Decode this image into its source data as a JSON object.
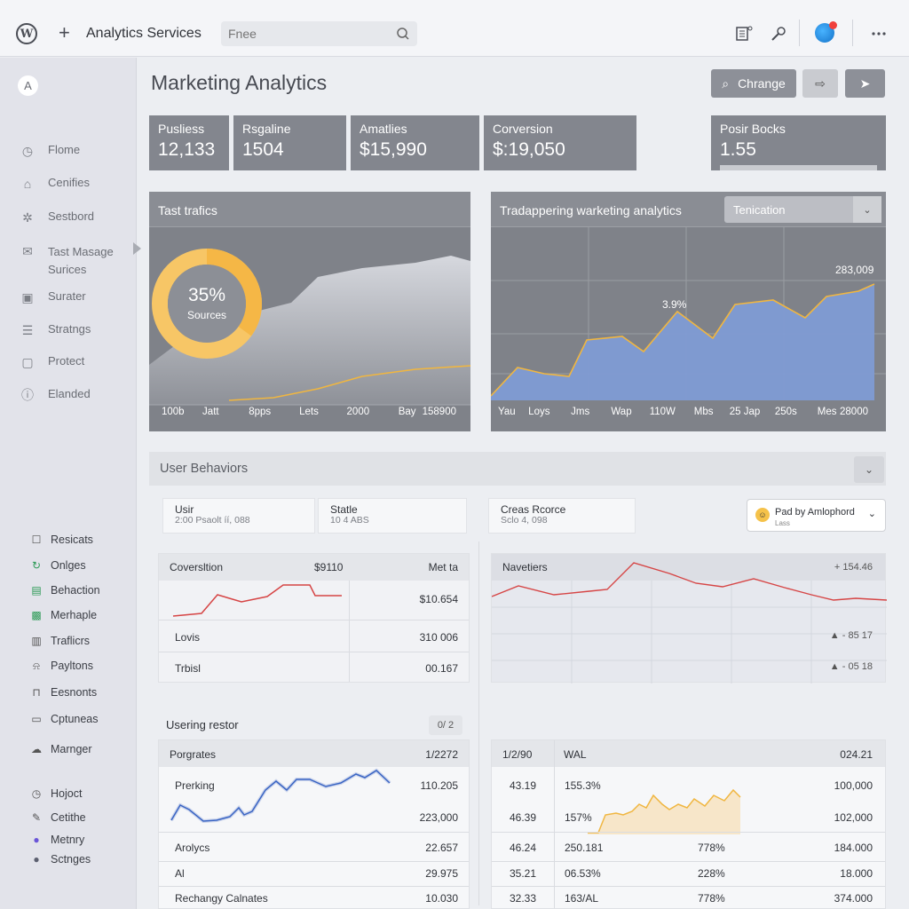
{
  "topbar": {
    "app_title": "Analytics Services",
    "search_placeholder": "Fnee",
    "icons": [
      "wordpress-icon",
      "plus-icon",
      "search-icon",
      "list-icon",
      "tool-icon",
      "avatar",
      "more-icon"
    ]
  },
  "sidebar": {
    "logo": "A",
    "items": [
      {
        "label": "Flome",
        "icon": "clock-icon"
      },
      {
        "label": "Cenifies",
        "icon": "home-icon"
      },
      {
        "label": "Sestbord",
        "icon": "gear-icon"
      },
      {
        "label": "Tast Masage Surices",
        "icon": "message-icon"
      },
      {
        "label": "Surater",
        "icon": "grid-icon"
      },
      {
        "label": "Stratngs",
        "icon": "list-icon"
      },
      {
        "label": "Protect",
        "icon": "shield-icon"
      },
      {
        "label": "Elanded",
        "icon": "info-icon"
      }
    ],
    "items2": [
      {
        "label": "Resicats",
        "icon": "square-icon"
      },
      {
        "label": "Onlges",
        "icon": "refresh-icon"
      },
      {
        "label": "Behaction",
        "icon": "chart-icon"
      },
      {
        "label": "Merhaple",
        "icon": "image-icon"
      },
      {
        "label": "Traflicrs",
        "icon": "doc-icon"
      },
      {
        "label": "Payltons",
        "icon": "bell-icon"
      },
      {
        "label": "Eesnonts",
        "icon": "lock-icon"
      },
      {
        "label": "Cptuneas",
        "icon": "folder-icon"
      },
      {
        "label": "Marnger",
        "icon": "cloud-icon"
      },
      {
        "label": "Hojoct",
        "icon": "clock-icon"
      },
      {
        "label": "Cetithe",
        "icon": "edit-icon"
      },
      {
        "label": "Metnry",
        "icon": "question-icon"
      },
      {
        "label": "Sctnges",
        "icon": "settings-icon"
      }
    ]
  },
  "header": {
    "page_title": "Marketing Analytics",
    "buttons": {
      "change": "Chrange"
    }
  },
  "kpis": [
    {
      "label": "Pusliess",
      "value": "12,133"
    },
    {
      "label": "Rsgaline",
      "value": "1504"
    },
    {
      "label": "Amatlies",
      "value": "$15,990"
    },
    {
      "label": "Corversion",
      "value": "$:19,050"
    },
    {
      "label": "Posir Bocks",
      "value": "1.55"
    }
  ],
  "panels": {
    "traffic": {
      "title": "Tast trafics",
      "donut_value": "35%",
      "donut_label": "Sources",
      "donut_fraction": 0.35,
      "colors": {
        "donut": "#f5b746",
        "line": "#f0b640",
        "area": "#c3c5cc"
      }
    },
    "marketing": {
      "title": "Tradappering warketing analytics",
      "select_value": "Tenication",
      "annotations": [
        "3.9%",
        "283,009"
      ],
      "colors": {
        "area": "#7f9bd4",
        "line": "#f0b640"
      }
    }
  },
  "chart_data": [
    {
      "type": "area",
      "title": "Tast trafics",
      "categories": [
        "100b",
        "Jatt",
        "8pps",
        "Lets",
        "2000",
        "Bay",
        "158900"
      ]
    },
    {
      "type": "area",
      "title": "Tradappering warketing analytics",
      "categories": [
        "Yau",
        "Loys",
        "Jms",
        "Wap",
        "110W",
        "Mbs",
        "25 Jap",
        "250s",
        "Mes",
        "28000"
      ]
    }
  ],
  "user_behaviors": {
    "title": "User Behaviors",
    "cards": [
      {
        "title": "Usir",
        "sub": "2:00 Psaolt íí, 088"
      },
      {
        "title": "Statle",
        "sub": "10 4 ABS"
      },
      {
        "title": "Creas Rcorce",
        "sub": "Sclo 4, 098"
      }
    ],
    "dropdown": {
      "label": "Pad by Amlophord",
      "sub": "Lass"
    },
    "conversion_table": {
      "headers": [
        "Coversltion",
        "$9110",
        "Met ta"
      ],
      "rows": [
        {
          "label": "",
          "value": "$10.654"
        },
        {
          "label": "Lovis",
          "value": "310 006"
        },
        {
          "label": "Trbisl",
          "value": "00.167"
        }
      ]
    },
    "navetiers": {
      "title": "Navetiers",
      "legend": [
        "+ 154.46",
        "▲ - 85 17",
        "▲ - 05 18"
      ]
    }
  },
  "ranking": {
    "title": "Usering restor",
    "badge": "0/ 2",
    "headers": [
      "Porgrates",
      "1/2272"
    ],
    "rows": [
      {
        "label": "Prerking",
        "value": "110.205"
      },
      {
        "label": "",
        "value": "223,000"
      },
      {
        "label": "Arolycs",
        "value": "22.657"
      },
      {
        "label": "Al",
        "value": "29.975"
      },
      {
        "label": "Rechangy Calnates",
        "value": "10.030"
      }
    ]
  },
  "wal_table": {
    "headers": [
      "1/2/90",
      "WAL",
      "024.21"
    ],
    "rows": [
      [
        "43.19",
        "155.3%",
        "",
        "100,000"
      ],
      [
        "46.39",
        "157%",
        "",
        "102,000"
      ],
      [
        "46.24",
        "250.181",
        "778%",
        "184.000"
      ],
      [
        "35.21",
        "06.53%",
        "228%",
        "18.000"
      ],
      [
        "32.33",
        "163/AL",
        "778%",
        "374.000"
      ]
    ]
  }
}
